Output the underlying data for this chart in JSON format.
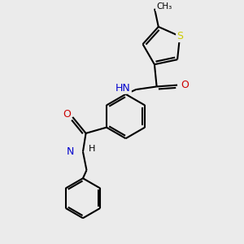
{
  "background_color": "#ebebeb",
  "atom_colors": {
    "C": "#000000",
    "N": "#0000cc",
    "O": "#cc0000",
    "S": "#cccc00"
  },
  "bond_color": "#000000",
  "bond_width": 1.5,
  "figsize": [
    3.0,
    3.0
  ],
  "dpi": 100,
  "xlim": [
    -1.5,
    1.5
  ],
  "ylim": [
    -1.6,
    1.6
  ]
}
